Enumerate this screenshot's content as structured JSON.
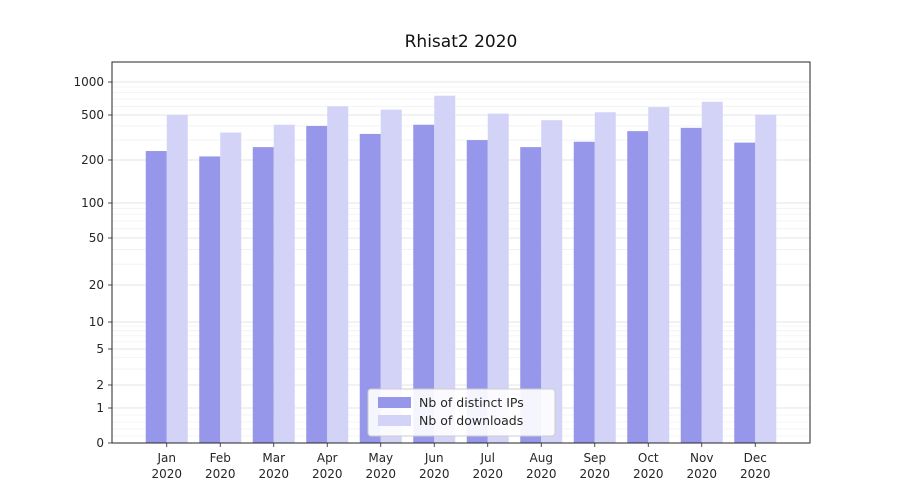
{
  "title": "Rhisat2 2020",
  "chart_data": {
    "type": "bar",
    "title": "Rhisat2 2020",
    "xlabel": "",
    "ylabel": "",
    "y_scale": "symlog",
    "grid": true,
    "legend_position": "lower center",
    "ylim": [
      0,
      1000
    ],
    "y_ticks": [
      0,
      1,
      2,
      5,
      10,
      20,
      50,
      100,
      200,
      500,
      1000
    ],
    "categories": [
      "Jan 2020",
      "Feb 2020",
      "Mar 2020",
      "Apr 2020",
      "May 2020",
      "Jun 2020",
      "Jul 2020",
      "Aug 2020",
      "Sep 2020",
      "Oct 2020",
      "Nov 2020",
      "Dec 2020"
    ],
    "series": [
      {
        "name": "Nb of distinct IPs",
        "color": "#9696eb",
        "values": [
          240,
          215,
          260,
          400,
          340,
          410,
          300,
          260,
          290,
          360,
          385,
          285
        ]
      },
      {
        "name": "Nb of downloads",
        "color": "#d3d3f8",
        "values": [
          500,
          350,
          410,
          600,
          560,
          750,
          515,
          450,
          530,
          590,
          660,
          505
        ]
      }
    ]
  },
  "legend": {
    "items": [
      {
        "label": "Nb of distinct IPs",
        "color": "#9696eb"
      },
      {
        "label": "Nb of downloads",
        "color": "#d3d3f8"
      }
    ]
  }
}
